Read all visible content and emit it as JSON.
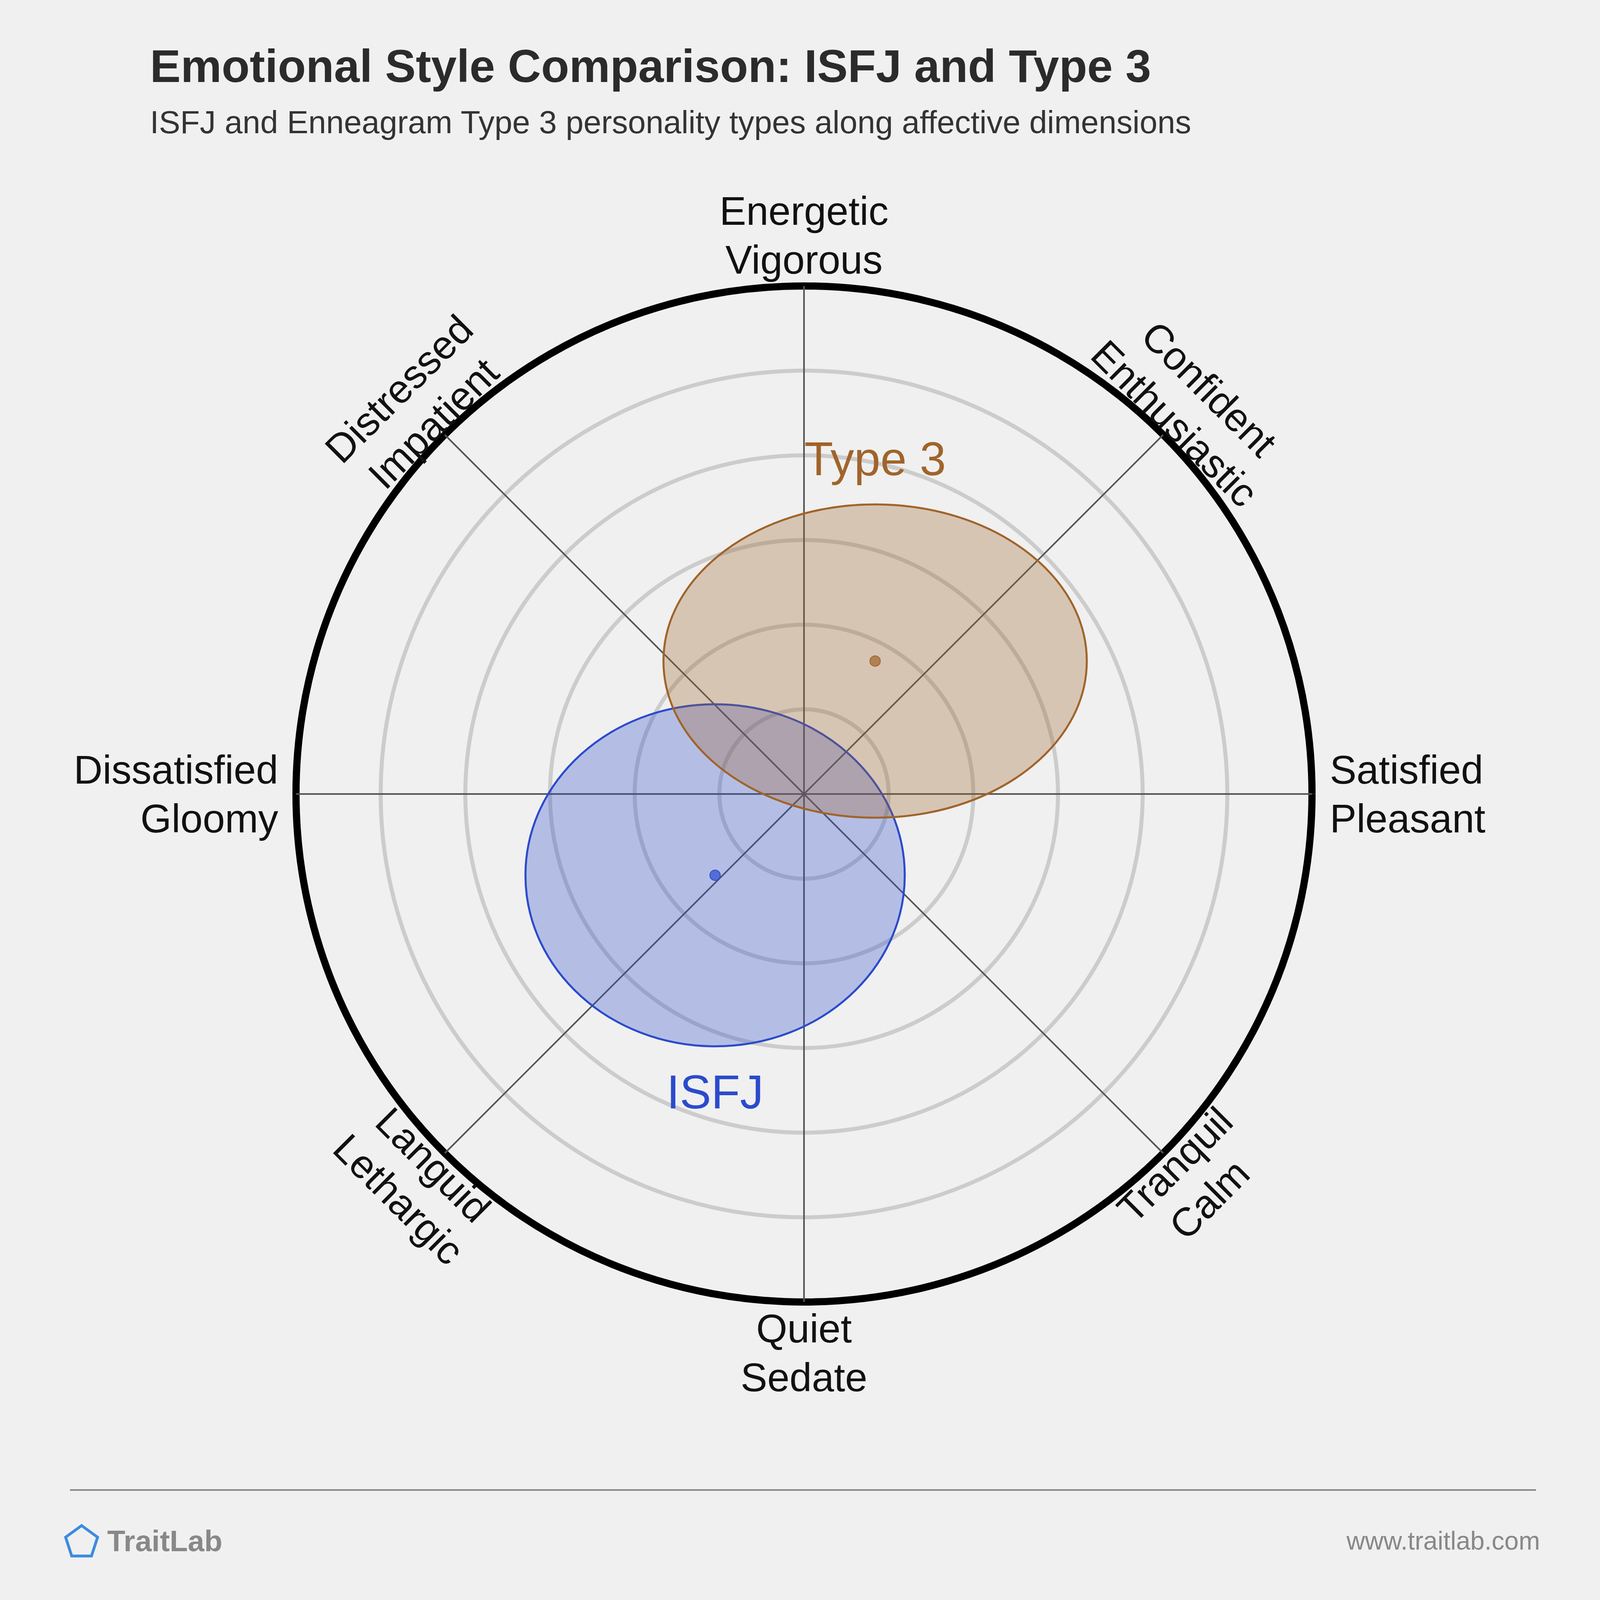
{
  "chart_data": {
    "type": "circumplex",
    "title": "Emotional Style Comparison: ISFJ and Type 3",
    "subtitle": "ISFJ and Enneagram Type 3 personality types along affective dimensions",
    "xlim": [
      -6,
      6
    ],
    "ylim": [
      -6,
      6
    ],
    "rings": [
      1,
      2,
      3,
      4,
      5,
      6
    ],
    "tick_labels": false,
    "directions": [
      [
        "Energetic",
        "Vigorous"
      ],
      [
        "Confident",
        "Enthusiastic"
      ],
      [
        "Satisfied",
        "Pleasant"
      ],
      [
        "Tranquil",
        "Calm"
      ],
      [
        "Quiet",
        "Sedate"
      ],
      [
        "Languid",
        "Lethargic"
      ],
      [
        "Dissatisfied",
        "Gloomy"
      ],
      [
        "Distressed",
        "Impatient"
      ]
    ],
    "series": [
      {
        "name": "ISFJ",
        "color": "#2b4bcc",
        "x": -1.05,
        "y": -0.96,
        "x_spread": 2.24,
        "y_spread": 2.02
      },
      {
        "name": "Type 3",
        "color": "#a0642a",
        "x": 0.84,
        "y": 1.57,
        "x_spread": 2.5,
        "y_spread": 1.85
      }
    ]
  },
  "footer": {
    "brand": "TraitLab",
    "url": "www.traitlab.com"
  }
}
